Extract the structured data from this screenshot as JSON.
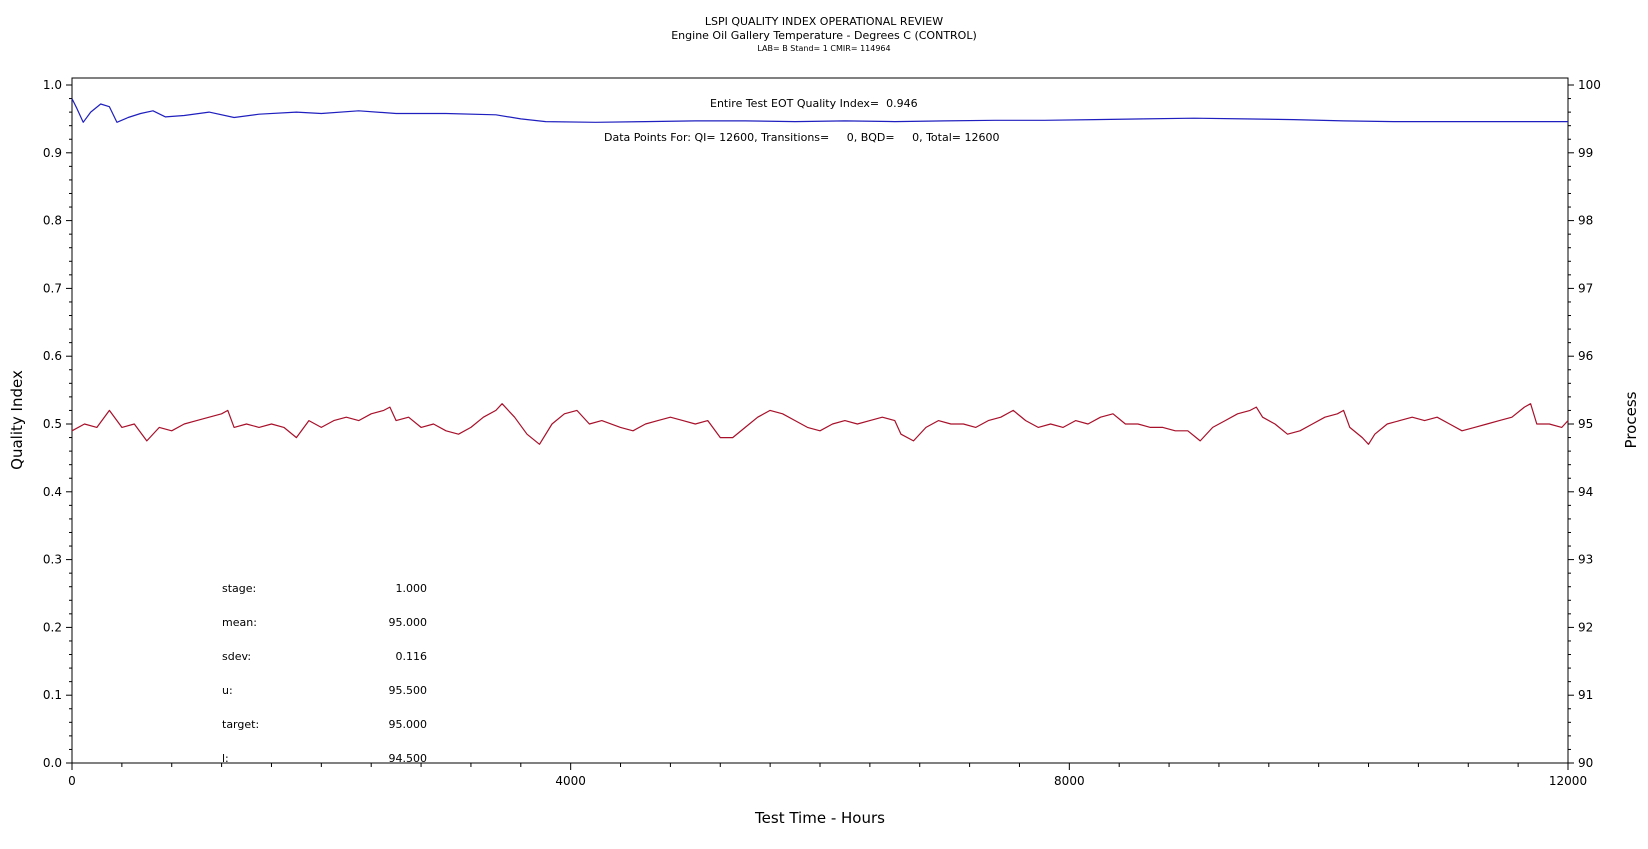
{
  "chart_data": {
    "type": "line",
    "title": "LSPI QUALITY INDEX OPERATIONAL REVIEW",
    "subtitle": "Engine Oil Gallery Temperature - Degrees C (CONTROL)",
    "info_line": "LAB= B Stand= 1 CMIR= 114964",
    "xlabel": "Test Time - Hours",
    "ylabel_left": "Quality Index",
    "ylabel_right": "Process",
    "xlim": [
      0,
      12000
    ],
    "ylim_left": [
      0.0,
      1.0
    ],
    "ylim_right": [
      90,
      100
    ],
    "x_ticks": [
      "0",
      "4000",
      "8000",
      "12000"
    ],
    "y_left_ticks": [
      "0.0",
      "0.1",
      "0.2",
      "0.3",
      "0.4",
      "0.5",
      "0.6",
      "0.7",
      "0.8",
      "0.9",
      "1.0"
    ],
    "y_right_ticks": [
      "90",
      "91",
      "92",
      "93",
      "94",
      "95",
      "96",
      "97",
      "98",
      "99",
      "100"
    ],
    "annotations": {
      "quality_index": "Entire Test EOT Quality Index=  0.946",
      "data_points": "Data Points For: QI= 12600, Transitions=     0, BQD=     0, Total= 12600"
    },
    "stats": [
      {
        "label": "stage:",
        "value": "1.000"
      },
      {
        "label": "mean:",
        "value": "95.000"
      },
      {
        "label": "sdev:",
        "value": "0.116"
      },
      {
        "label": "u:",
        "value": "95.500"
      },
      {
        "label": "target:",
        "value": "95.000"
      },
      {
        "label": "l:",
        "value": "94.500"
      }
    ],
    "series": [
      {
        "color": "#1f1fbf",
        "axis": "left",
        "points": [
          [
            0,
            0.98
          ],
          [
            40,
            0.965
          ],
          [
            90,
            0.945
          ],
          [
            150,
            0.96
          ],
          [
            230,
            0.972
          ],
          [
            300,
            0.968
          ],
          [
            360,
            0.945
          ],
          [
            450,
            0.952
          ],
          [
            550,
            0.958
          ],
          [
            650,
            0.962
          ],
          [
            750,
            0.953
          ],
          [
            900,
            0.955
          ],
          [
            1100,
            0.96
          ],
          [
            1300,
            0.952
          ],
          [
            1500,
            0.957
          ],
          [
            1800,
            0.96
          ],
          [
            2000,
            0.958
          ],
          [
            2300,
            0.962
          ],
          [
            2600,
            0.958
          ],
          [
            3000,
            0.958
          ],
          [
            3400,
            0.956
          ],
          [
            3600,
            0.95
          ],
          [
            3800,
            0.946
          ],
          [
            4200,
            0.945
          ],
          [
            4600,
            0.946
          ],
          [
            5000,
            0.947
          ],
          [
            5400,
            0.947
          ],
          [
            5800,
            0.946
          ],
          [
            6200,
            0.947
          ],
          [
            6600,
            0.946
          ],
          [
            7000,
            0.947
          ],
          [
            7400,
            0.948
          ],
          [
            7800,
            0.948
          ],
          [
            8200,
            0.949
          ],
          [
            8600,
            0.95
          ],
          [
            9000,
            0.951
          ],
          [
            9400,
            0.95
          ],
          [
            9800,
            0.949
          ],
          [
            10200,
            0.947
          ],
          [
            10600,
            0.946
          ],
          [
            11000,
            0.946
          ],
          [
            11400,
            0.946
          ],
          [
            11800,
            0.946
          ],
          [
            12000,
            0.946
          ]
        ]
      },
      {
        "color": "#a8102a",
        "axis": "right",
        "points": [
          [
            0,
            94.9
          ],
          [
            100,
            95.0
          ],
          [
            200,
            94.95
          ],
          [
            300,
            95.2
          ],
          [
            400,
            94.95
          ],
          [
            500,
            95.0
          ],
          [
            600,
            94.75
          ],
          [
            700,
            94.95
          ],
          [
            800,
            94.9
          ],
          [
            900,
            95.0
          ],
          [
            1000,
            95.05
          ],
          [
            1100,
            95.1
          ],
          [
            1200,
            95.15
          ],
          [
            1250,
            95.2
          ],
          [
            1300,
            94.95
          ],
          [
            1400,
            95.0
          ],
          [
            1500,
            94.95
          ],
          [
            1600,
            95.0
          ],
          [
            1700,
            94.95
          ],
          [
            1800,
            94.8
          ],
          [
            1900,
            95.05
          ],
          [
            2000,
            94.95
          ],
          [
            2100,
            95.05
          ],
          [
            2200,
            95.1
          ],
          [
            2300,
            95.05
          ],
          [
            2400,
            95.15
          ],
          [
            2500,
            95.2
          ],
          [
            2550,
            95.25
          ],
          [
            2600,
            95.05
          ],
          [
            2700,
            95.1
          ],
          [
            2800,
            94.95
          ],
          [
            2900,
            95.0
          ],
          [
            3000,
            94.9
          ],
          [
            3100,
            94.85
          ],
          [
            3200,
            94.95
          ],
          [
            3300,
            95.1
          ],
          [
            3400,
            95.2
          ],
          [
            3450,
            95.3
          ],
          [
            3550,
            95.1
          ],
          [
            3650,
            94.85
          ],
          [
            3750,
            94.7
          ],
          [
            3850,
            95.0
          ],
          [
            3950,
            95.15
          ],
          [
            4050,
            95.2
          ],
          [
            4150,
            95.0
          ],
          [
            4250,
            95.05
          ],
          [
            4400,
            94.95
          ],
          [
            4500,
            94.9
          ],
          [
            4600,
            95.0
          ],
          [
            4700,
            95.05
          ],
          [
            4800,
            95.1
          ],
          [
            4900,
            95.05
          ],
          [
            5000,
            95.0
          ],
          [
            5100,
            95.05
          ],
          [
            5200,
            94.8
          ],
          [
            5300,
            94.8
          ],
          [
            5400,
            94.95
          ],
          [
            5500,
            95.1
          ],
          [
            5600,
            95.2
          ],
          [
            5700,
            95.15
          ],
          [
            5800,
            95.05
          ],
          [
            5900,
            94.95
          ],
          [
            6000,
            94.9
          ],
          [
            6100,
            95.0
          ],
          [
            6200,
            95.05
          ],
          [
            6300,
            95.0
          ],
          [
            6400,
            95.05
          ],
          [
            6500,
            95.1
          ],
          [
            6600,
            95.05
          ],
          [
            6650,
            94.85
          ],
          [
            6750,
            94.75
          ],
          [
            6850,
            94.95
          ],
          [
            6950,
            95.05
          ],
          [
            7050,
            95.0
          ],
          [
            7150,
            95.0
          ],
          [
            7250,
            94.95
          ],
          [
            7350,
            95.05
          ],
          [
            7450,
            95.1
          ],
          [
            7550,
            95.2
          ],
          [
            7650,
            95.05
          ],
          [
            7750,
            94.95
          ],
          [
            7850,
            95.0
          ],
          [
            7950,
            94.95
          ],
          [
            8050,
            95.05
          ],
          [
            8150,
            95.0
          ],
          [
            8250,
            95.1
          ],
          [
            8350,
            95.15
          ],
          [
            8450,
            95.0
          ],
          [
            8550,
            95.0
          ],
          [
            8650,
            94.95
          ],
          [
            8750,
            94.95
          ],
          [
            8850,
            94.9
          ],
          [
            8950,
            94.9
          ],
          [
            9050,
            94.75
          ],
          [
            9150,
            94.95
          ],
          [
            9250,
            95.05
          ],
          [
            9350,
            95.15
          ],
          [
            9450,
            95.2
          ],
          [
            9500,
            95.25
          ],
          [
            9550,
            95.1
          ],
          [
            9650,
            95.0
          ],
          [
            9750,
            94.85
          ],
          [
            9850,
            94.9
          ],
          [
            9950,
            95.0
          ],
          [
            10050,
            95.1
          ],
          [
            10150,
            95.15
          ],
          [
            10200,
            95.2
          ],
          [
            10250,
            94.95
          ],
          [
            10350,
            94.8
          ],
          [
            10400,
            94.7
          ],
          [
            10450,
            94.85
          ],
          [
            10550,
            95.0
          ],
          [
            10650,
            95.05
          ],
          [
            10750,
            95.1
          ],
          [
            10850,
            95.05
          ],
          [
            10950,
            95.1
          ],
          [
            11050,
            95.0
          ],
          [
            11150,
            94.9
          ],
          [
            11250,
            94.95
          ],
          [
            11350,
            95.0
          ],
          [
            11450,
            95.05
          ],
          [
            11550,
            95.1
          ],
          [
            11650,
            95.25
          ],
          [
            11700,
            95.3
          ],
          [
            11750,
            95.0
          ],
          [
            11850,
            95.0
          ],
          [
            11950,
            94.95
          ],
          [
            12000,
            95.05
          ]
        ]
      }
    ]
  }
}
